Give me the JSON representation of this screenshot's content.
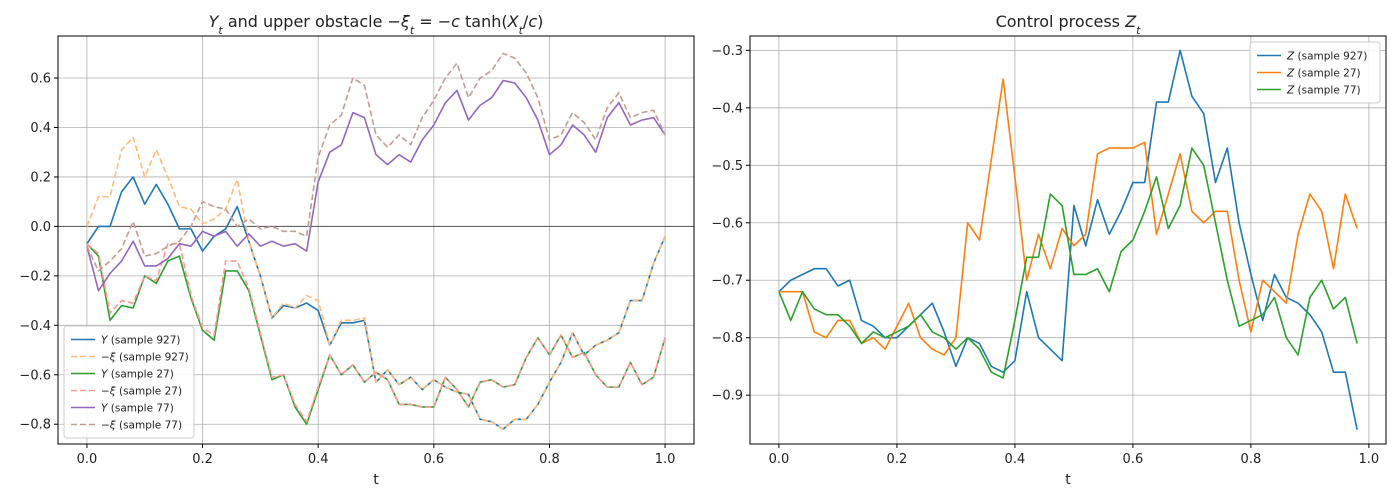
{
  "chart_data": [
    {
      "type": "line",
      "title": "Y_t and upper obstacle −ξ_t = −c tanh(X_t/c)",
      "title_parts": {
        "a": "Y",
        "a_sub": "t",
        "b": " and upper obstacle ",
        "c": "−ξ",
        "c_sub": "t",
        "d": " = −",
        "e": "c",
        "f": " tanh(",
        "g": "X",
        "g_sub": "t",
        "h": "/",
        "i": "c",
        "j": ")"
      },
      "xlabel": "t",
      "ylabel": "",
      "xlim": [
        -0.05,
        1.05
      ],
      "ylim": [
        -0.88,
        0.77
      ],
      "xticks": [
        0.0,
        0.2,
        0.4,
        0.6,
        0.8,
        1.0
      ],
      "xtick_labels": [
        "0.0",
        "0.2",
        "0.4",
        "0.6",
        "0.8",
        "1.0"
      ],
      "yticks": [
        -0.8,
        -0.6,
        -0.4,
        -0.2,
        0.0,
        0.2,
        0.4,
        0.6
      ],
      "ytick_labels": [
        "−0.8",
        "−0.6",
        "−0.4",
        "−0.2",
        "0.0",
        "0.2",
        "0.4",
        "0.6"
      ],
      "hline": 0.0,
      "grid": true,
      "legend_position": "lower-left",
      "x": [
        0.0,
        0.02,
        0.04,
        0.06,
        0.08,
        0.1,
        0.12,
        0.14,
        0.16,
        0.18,
        0.2,
        0.22,
        0.24,
        0.26,
        0.28,
        0.3,
        0.32,
        0.34,
        0.36,
        0.38,
        0.4,
        0.42,
        0.44,
        0.46,
        0.48,
        0.5,
        0.52,
        0.54,
        0.56,
        0.58,
        0.6,
        0.62,
        0.64,
        0.66,
        0.68,
        0.7,
        0.72,
        0.74,
        0.76,
        0.78,
        0.8,
        0.82,
        0.84,
        0.86,
        0.88,
        0.9,
        0.92,
        0.94,
        0.96,
        0.98,
        1.0
      ],
      "series": [
        {
          "name": "Y (sample 927)",
          "name_parts": {
            "sym": "Y",
            "rest": " (sample 927)"
          },
          "color": "#1f77b4",
          "dash": "solid",
          "values": [
            -0.07,
            0.0,
            0.0,
            0.14,
            0.2,
            0.09,
            0.17,
            0.09,
            -0.01,
            -0.01,
            -0.1,
            -0.04,
            -0.01,
            0.08,
            -0.06,
            -0.2,
            -0.37,
            -0.32,
            -0.33,
            -0.31,
            -0.34,
            -0.48,
            -0.39,
            -0.39,
            -0.38,
            -0.63,
            -0.58,
            -0.64,
            -0.61,
            -0.66,
            -0.62,
            -0.65,
            -0.67,
            -0.68,
            -0.78,
            -0.79,
            -0.82,
            -0.78,
            -0.78,
            -0.72,
            -0.63,
            -0.55,
            -0.43,
            -0.52,
            -0.48,
            -0.46,
            -0.43,
            -0.3,
            -0.3,
            -0.15,
            -0.04
          ]
        },
        {
          "name": "−ξ (sample 927)",
          "name_parts": {
            "sym": "−ξ",
            "rest": " (sample 927)"
          },
          "color": "#ffbb78",
          "dash": "dashed",
          "values": [
            0.0,
            0.12,
            0.12,
            0.31,
            0.36,
            0.2,
            0.31,
            0.2,
            0.08,
            0.07,
            0.01,
            0.03,
            0.07,
            0.19,
            -0.06,
            -0.2,
            -0.37,
            -0.31,
            -0.33,
            -0.28,
            -0.3,
            -0.48,
            -0.38,
            -0.38,
            -0.37,
            -0.63,
            -0.58,
            -0.64,
            -0.61,
            -0.66,
            -0.62,
            -0.65,
            -0.67,
            -0.68,
            -0.78,
            -0.79,
            -0.82,
            -0.78,
            -0.78,
            -0.72,
            -0.63,
            -0.55,
            -0.43,
            -0.52,
            -0.48,
            -0.46,
            -0.43,
            -0.3,
            -0.3,
            -0.15,
            -0.04
          ]
        },
        {
          "name": "Y (sample 27)",
          "name_parts": {
            "sym": "Y",
            "rest": " (sample 27)"
          },
          "color": "#2ca02c",
          "dash": "solid",
          "values": [
            -0.07,
            -0.12,
            -0.38,
            -0.32,
            -0.33,
            -0.2,
            -0.23,
            -0.14,
            -0.12,
            -0.29,
            -0.42,
            -0.46,
            -0.18,
            -0.18,
            -0.26,
            -0.44,
            -0.62,
            -0.6,
            -0.73,
            -0.8,
            -0.66,
            -0.52,
            -0.6,
            -0.56,
            -0.63,
            -0.59,
            -0.62,
            -0.72,
            -0.72,
            -0.73,
            -0.73,
            -0.61,
            -0.66,
            -0.73,
            -0.63,
            -0.62,
            -0.65,
            -0.64,
            -0.53,
            -0.45,
            -0.52,
            -0.44,
            -0.53,
            -0.51,
            -0.6,
            -0.65,
            -0.65,
            -0.55,
            -0.64,
            -0.61,
            -0.45
          ]
        },
        {
          "name": "−ξ (sample 27)",
          "name_parts": {
            "sym": "−ξ",
            "rest": " (sample 27)"
          },
          "color": "#ff9896",
          "dash": "dashed",
          "values": [
            -0.07,
            -0.11,
            -0.35,
            -0.3,
            -0.31,
            -0.2,
            -0.22,
            -0.07,
            -0.07,
            -0.28,
            -0.41,
            -0.44,
            -0.14,
            -0.14,
            -0.25,
            -0.43,
            -0.61,
            -0.6,
            -0.72,
            -0.79,
            -0.65,
            -0.52,
            -0.6,
            -0.56,
            -0.63,
            -0.59,
            -0.62,
            -0.72,
            -0.72,
            -0.73,
            -0.73,
            -0.61,
            -0.66,
            -0.73,
            -0.63,
            -0.62,
            -0.65,
            -0.64,
            -0.53,
            -0.45,
            -0.52,
            -0.44,
            -0.53,
            -0.51,
            -0.6,
            -0.65,
            -0.65,
            -0.55,
            -0.64,
            -0.61,
            -0.45
          ]
        },
        {
          "name": "Y (sample 77)",
          "name_parts": {
            "sym": "Y",
            "rest": " (sample 77)"
          },
          "color": "#9467bd",
          "dash": "solid",
          "values": [
            -0.08,
            -0.26,
            -0.19,
            -0.14,
            -0.06,
            -0.16,
            -0.16,
            -0.13,
            -0.07,
            -0.08,
            -0.02,
            -0.04,
            -0.02,
            -0.08,
            -0.03,
            -0.08,
            -0.06,
            -0.08,
            -0.07,
            -0.1,
            0.18,
            0.3,
            0.33,
            0.46,
            0.44,
            0.29,
            0.25,
            0.29,
            0.26,
            0.35,
            0.41,
            0.5,
            0.55,
            0.43,
            0.49,
            0.52,
            0.59,
            0.58,
            0.52,
            0.43,
            0.29,
            0.33,
            0.41,
            0.37,
            0.3,
            0.44,
            0.5,
            0.41,
            0.43,
            0.44,
            0.37
          ]
        },
        {
          "name": "−ξ (sample 77)",
          "name_parts": {
            "sym": "−ξ",
            "rest": " (sample 77)"
          },
          "color": "#c49c94",
          "dash": "dashed",
          "values": [
            -0.08,
            -0.18,
            -0.14,
            -0.09,
            0.02,
            -0.12,
            -0.11,
            -0.08,
            -0.06,
            0.0,
            0.1,
            0.08,
            0.07,
            0.0,
            0.03,
            -0.01,
            0.0,
            -0.02,
            -0.02,
            -0.04,
            0.28,
            0.41,
            0.45,
            0.6,
            0.57,
            0.37,
            0.32,
            0.37,
            0.33,
            0.44,
            0.51,
            0.6,
            0.66,
            0.52,
            0.6,
            0.63,
            0.7,
            0.68,
            0.62,
            0.52,
            0.35,
            0.37,
            0.46,
            0.42,
            0.35,
            0.48,
            0.54,
            0.44,
            0.46,
            0.47,
            0.37
          ]
        }
      ]
    },
    {
      "type": "line",
      "title": "Control process Z_t",
      "title_parts": {
        "a": "Control process ",
        "b": "Z",
        "b_sub": "t"
      },
      "xlabel": "t",
      "ylabel": "",
      "xlim": [
        -0.049,
        1.029
      ],
      "ylim": [
        -0.985,
        -0.275
      ],
      "xticks": [
        0.0,
        0.2,
        0.4,
        0.6,
        0.8,
        1.0
      ],
      "xtick_labels": [
        "0.0",
        "0.2",
        "0.4",
        "0.6",
        "0.8",
        "1.0"
      ],
      "yticks": [
        -0.9,
        -0.8,
        -0.7,
        -0.6,
        -0.5,
        -0.4,
        -0.3
      ],
      "ytick_labels": [
        "−0.9",
        "−0.8",
        "−0.7",
        "−0.6",
        "−0.5",
        "−0.4",
        "−0.3"
      ],
      "grid": true,
      "legend_position": "top-right",
      "x": [
        0.0,
        0.02,
        0.04,
        0.06,
        0.08,
        0.1,
        0.12,
        0.14,
        0.16,
        0.18,
        0.2,
        0.22,
        0.24,
        0.26,
        0.28,
        0.3,
        0.32,
        0.34,
        0.36,
        0.38,
        0.4,
        0.42,
        0.44,
        0.46,
        0.48,
        0.5,
        0.52,
        0.54,
        0.56,
        0.58,
        0.6,
        0.62,
        0.64,
        0.66,
        0.68,
        0.7,
        0.72,
        0.74,
        0.76,
        0.78,
        0.8,
        0.82,
        0.84,
        0.86,
        0.88,
        0.9,
        0.92,
        0.94,
        0.96,
        0.98
      ],
      "series": [
        {
          "name": "Z (sample 927)",
          "name_parts": {
            "sym": "Z",
            "rest": " (sample 927)"
          },
          "color": "#1f77b4",
          "values": [
            -0.72,
            -0.7,
            -0.69,
            -0.68,
            -0.68,
            -0.71,
            -0.7,
            -0.77,
            -0.78,
            -0.8,
            -0.8,
            -0.78,
            -0.76,
            -0.74,
            -0.79,
            -0.85,
            -0.8,
            -0.81,
            -0.85,
            -0.86,
            -0.84,
            -0.72,
            -0.8,
            -0.82,
            -0.84,
            -0.57,
            -0.64,
            -0.56,
            -0.62,
            -0.58,
            -0.53,
            -0.53,
            -0.39,
            -0.39,
            -0.3,
            -0.38,
            -0.41,
            -0.53,
            -0.47,
            -0.6,
            -0.69,
            -0.77,
            -0.69,
            -0.73,
            -0.74,
            -0.76,
            -0.79,
            -0.86,
            -0.86,
            -0.96
          ]
        },
        {
          "name": "Z (sample 27)",
          "name_parts": {
            "sym": "Z",
            "rest": " (sample 27)"
          },
          "color": "#ff7f0e",
          "values": [
            -0.72,
            -0.72,
            -0.72,
            -0.79,
            -0.8,
            -0.77,
            -0.77,
            -0.81,
            -0.8,
            -0.82,
            -0.78,
            -0.74,
            -0.8,
            -0.82,
            -0.83,
            -0.8,
            -0.6,
            -0.63,
            -0.49,
            -0.35,
            -0.52,
            -0.7,
            -0.62,
            -0.68,
            -0.61,
            -0.64,
            -0.62,
            -0.48,
            -0.47,
            -0.47,
            -0.47,
            -0.46,
            -0.62,
            -0.55,
            -0.48,
            -0.58,
            -0.6,
            -0.58,
            -0.58,
            -0.7,
            -0.79,
            -0.7,
            -0.72,
            -0.74,
            -0.62,
            -0.55,
            -0.58,
            -0.68,
            -0.55,
            -0.61
          ]
        },
        {
          "name": "Z (sample 77)",
          "name_parts": {
            "sym": "Z",
            "rest": " (sample 77)"
          },
          "color": "#2ca02c",
          "values": [
            -0.72,
            -0.77,
            -0.72,
            -0.75,
            -0.76,
            -0.76,
            -0.78,
            -0.81,
            -0.79,
            -0.8,
            -0.79,
            -0.78,
            -0.76,
            -0.79,
            -0.8,
            -0.82,
            -0.8,
            -0.82,
            -0.86,
            -0.87,
            -0.77,
            -0.66,
            -0.66,
            -0.55,
            -0.57,
            -0.69,
            -0.69,
            -0.68,
            -0.72,
            -0.65,
            -0.63,
            -0.58,
            -0.52,
            -0.61,
            -0.57,
            -0.47,
            -0.5,
            -0.6,
            -0.7,
            -0.78,
            -0.77,
            -0.76,
            -0.73,
            -0.8,
            -0.83,
            -0.73,
            -0.7,
            -0.75,
            -0.73,
            -0.81
          ]
        }
      ]
    }
  ]
}
